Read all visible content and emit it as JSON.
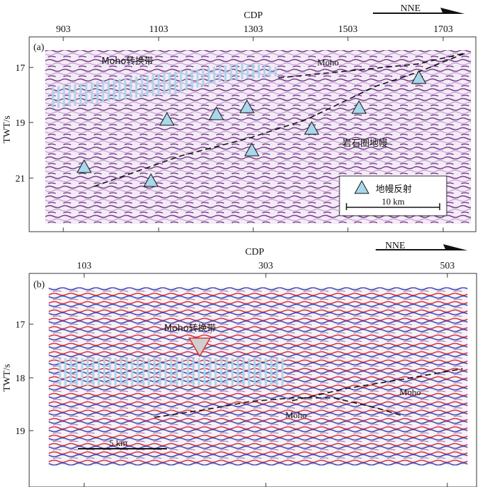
{
  "panel_a": {
    "label": "(a)",
    "x_axis_title": "CDP",
    "y_axis_title": "TWT/s",
    "x_ticks": [
      "903",
      "1103",
      "1303",
      "1503",
      "1703"
    ],
    "y_ticks": [
      "17",
      "19",
      "21"
    ],
    "direction": "NNE",
    "zone_label": "Moho转换带",
    "moho_label": "Moho",
    "mantle_label": "岩石圈地幔",
    "legend_label": "地幔反射",
    "scale_label": "10 km",
    "colors": {
      "trace_a": "#7a3c8c",
      "trace_b": "#c49ad0",
      "zone": "#a9d5ea",
      "marker_fill": "#a8d8ea"
    }
  },
  "panel_b": {
    "label": "(b)",
    "x_axis_title": "CDP",
    "y_axis_title": "TWT/s",
    "x_ticks": [
      "103",
      "303",
      "503"
    ],
    "y_ticks": [
      "17",
      "18",
      "19"
    ],
    "direction": "NNE",
    "zone_label": "Moho转换带",
    "moho_label_right": "Moho",
    "moho_label_mid": "Moho",
    "scale_label": "5 km",
    "colors": {
      "trace_red": "#d8333a",
      "trace_blue": "#3a49b8",
      "marker": "#d33"
    }
  }
}
